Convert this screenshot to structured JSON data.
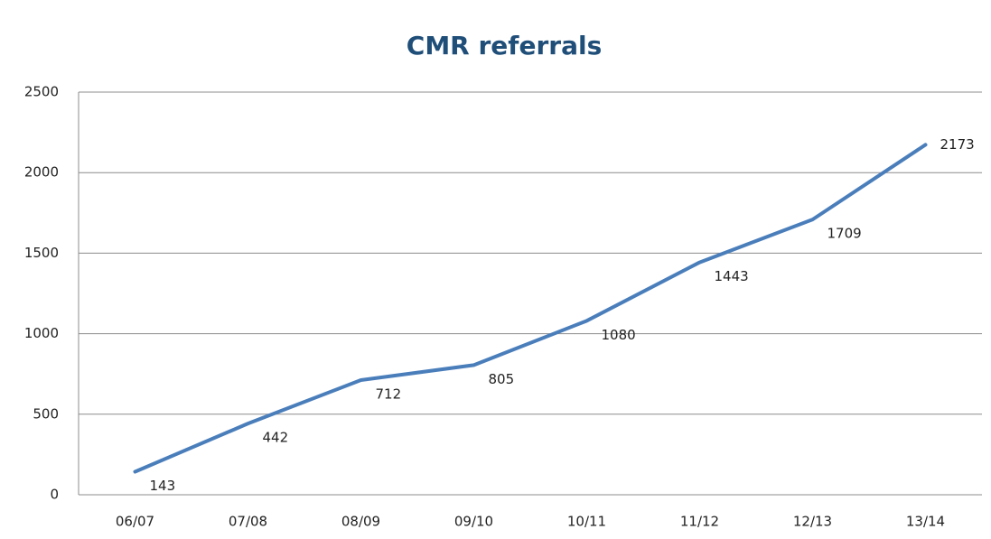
{
  "chart_data": {
    "type": "line",
    "title": "CMR referrals",
    "categories": [
      "06/07",
      "07/08",
      "08/09",
      "09/10",
      "10/11",
      "11/12",
      "12/13",
      "13/14"
    ],
    "values": [
      143,
      442,
      712,
      805,
      1080,
      1443,
      1709,
      2173
    ],
    "color": "#4a7ebb",
    "ylim": [
      0,
      2500
    ],
    "yticks": [
      0,
      500,
      1000,
      1500,
      2000,
      2500
    ],
    "grid": true
  }
}
